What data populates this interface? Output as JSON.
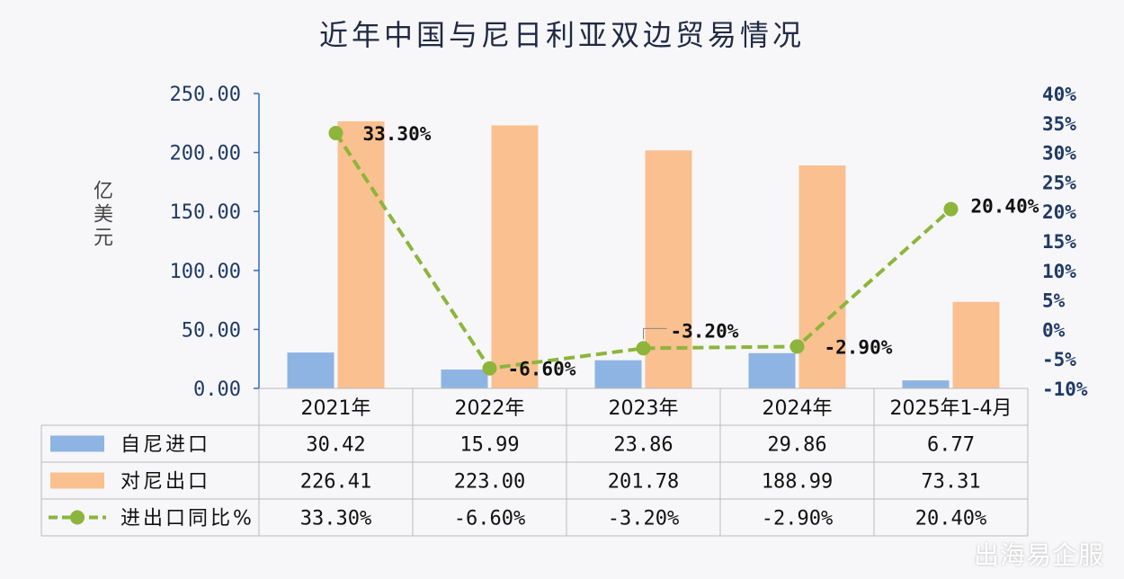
{
  "chart_data": {
    "type": "bar",
    "title": "近年中国与尼日利亚双边贸易情况",
    "ylabel": "亿美元",
    "categories": [
      "2021年",
      "2022年",
      "2023年",
      "2024年",
      "2025年1-4月"
    ],
    "ylim": [
      0,
      250
    ],
    "y2lim": [
      -10,
      40
    ],
    "yticks": [
      "0.00",
      "50.00",
      "100.00",
      "150.00",
      "200.00",
      "250.00"
    ],
    "y2ticks": [
      "-10%",
      "-5%",
      "0%",
      "5%",
      "10%",
      "15%",
      "20%",
      "25%",
      "30%",
      "35%",
      "40%"
    ],
    "series": [
      {
        "name": "自尼进口",
        "kind": "bar",
        "color": "#8eb4e3",
        "values": [
          30.42,
          15.99,
          23.86,
          29.86,
          6.77
        ],
        "labels": [
          "30.42",
          "15.99",
          "23.86",
          "29.86",
          "6.77"
        ]
      },
      {
        "name": "对尼出口",
        "kind": "bar",
        "color": "#fac090",
        "values": [
          226.41,
          223.0,
          201.78,
          188.99,
          73.31
        ],
        "labels": [
          "226.41",
          "223.00",
          "201.78",
          "188.99",
          "73.31"
        ]
      },
      {
        "name": "进出口同比%",
        "kind": "line",
        "color": "#8db53c",
        "axis": "right",
        "values": [
          33.3,
          -6.6,
          -3.2,
          -2.9,
          20.4
        ],
        "labels": [
          "33.30%",
          "-6.60%",
          "-3.20%",
          "-2.90%",
          "20.40%"
        ],
        "point_labels": [
          "33.30%",
          "-6.60%",
          "-3.20%",
          "-2.90%",
          "20.40%"
        ]
      }
    ],
    "grid": false,
    "legend": "table-bottom"
  },
  "watermark": "出海易企服"
}
